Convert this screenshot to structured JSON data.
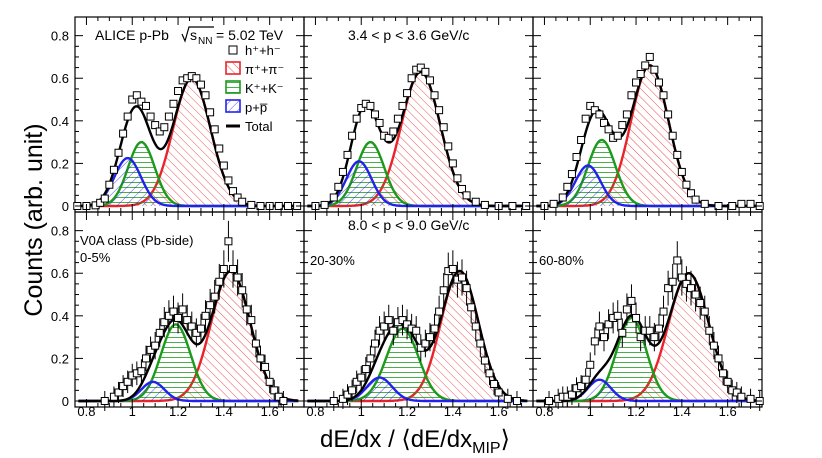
{
  "figure": {
    "ylabel": "Counts (arb. unit)",
    "xlabel_main": "dE/dx / ⟨dE/dx",
    "xlabel_sub": "MIP",
    "xlabel_close": "⟩",
    "experiment": "ALICE p-Pb",
    "energy_label": "= 5.02 TeV",
    "energy_sqrt": "s",
    "energy_sub": "NN",
    "momentum_top": "3.4 < p < 3.6 GeV/c",
    "momentum_bottom": "8.0 < p < 9.0 GeV/c",
    "class_label": "V0A class (Pb-side)"
  },
  "legend": [
    {
      "label": "h⁺+h⁻",
      "style": "marker"
    },
    {
      "label": "π⁺+π⁻",
      "style": "hatch",
      "color": "#e8242a"
    },
    {
      "label": "K⁺+K⁻",
      "style": "hatch",
      "color": "#1c9a1c"
    },
    {
      "label": "p+p̅",
      "style": "hatch",
      "color": "#2222ee"
    },
    {
      "label": "Total",
      "style": "line",
      "color": "#000000"
    }
  ],
  "chart_data": {
    "type": "line",
    "xlim": [
      0.75,
      1.75
    ],
    "ylim": [
      0,
      0.85
    ],
    "xticks": [
      "0.8",
      "1",
      "1.2",
      "1.4",
      "1.6"
    ],
    "yticks": [
      "0",
      "0.2",
      "0.4",
      "0.6",
      "0.8"
    ],
    "colors": {
      "pion": "#e8242a",
      "kaon": "#1c9a1c",
      "proton": "#2222ee",
      "total": "#000000"
    },
    "panels": [
      {
        "row": 0,
        "col": 0,
        "centrality": "",
        "pion": [
          0.6,
          1.26,
          0.082
        ],
        "kaon": [
          0.3,
          1.04,
          0.058
        ],
        "proton": [
          0.225,
          0.98,
          0.058
        ],
        "points": [
          [
            0.76,
            0.0
          ],
          [
            0.8,
            0.0
          ],
          [
            0.84,
            0.003
          ],
          [
            0.86,
            0.015
          ],
          [
            0.88,
            0.035
          ],
          [
            0.9,
            0.1
          ],
          [
            0.92,
            0.17
          ],
          [
            0.94,
            0.25
          ],
          [
            0.96,
            0.34
          ],
          [
            0.98,
            0.42
          ],
          [
            1.0,
            0.5
          ],
          [
            1.02,
            0.52
          ],
          [
            1.04,
            0.49
          ],
          [
            1.06,
            0.47
          ],
          [
            1.08,
            0.42
          ],
          [
            1.1,
            0.38
          ],
          [
            1.12,
            0.35
          ],
          [
            1.14,
            0.37
          ],
          [
            1.16,
            0.42
          ],
          [
            1.18,
            0.48
          ],
          [
            1.2,
            0.54
          ],
          [
            1.22,
            0.59
          ],
          [
            1.24,
            0.6
          ],
          [
            1.26,
            0.61
          ],
          [
            1.28,
            0.6
          ],
          [
            1.3,
            0.57
          ],
          [
            1.32,
            0.52
          ],
          [
            1.34,
            0.44
          ],
          [
            1.36,
            0.36
          ],
          [
            1.38,
            0.27
          ],
          [
            1.4,
            0.19
          ],
          [
            1.42,
            0.12
          ],
          [
            1.44,
            0.07
          ],
          [
            1.46,
            0.04
          ],
          [
            1.48,
            0.02
          ],
          [
            1.52,
            0.005
          ],
          [
            1.56,
            0.0
          ],
          [
            1.6,
            0.0
          ],
          [
            1.64,
            0.0
          ],
          [
            1.68,
            0.0
          ],
          [
            1.72,
            0.0
          ]
        ]
      },
      {
        "row": 0,
        "col": 1,
        "centrality": "",
        "pion": [
          0.63,
          1.26,
          0.085
        ],
        "kaon": [
          0.3,
          1.04,
          0.06
        ],
        "proton": [
          0.21,
          0.99,
          0.055
        ],
        "points": [
          [
            0.8,
            0.0
          ],
          [
            0.84,
            0.005
          ],
          [
            0.88,
            0.04
          ],
          [
            0.9,
            0.09
          ],
          [
            0.92,
            0.16
          ],
          [
            0.94,
            0.24
          ],
          [
            0.96,
            0.33
          ],
          [
            0.98,
            0.41
          ],
          [
            1.0,
            0.46
          ],
          [
            1.02,
            0.48
          ],
          [
            1.04,
            0.47
          ],
          [
            1.06,
            0.43
          ],
          [
            1.08,
            0.39
          ],
          [
            1.1,
            0.33
          ],
          [
            1.12,
            0.32
          ],
          [
            1.14,
            0.35
          ],
          [
            1.16,
            0.41
          ],
          [
            1.18,
            0.47
          ],
          [
            1.2,
            0.53
          ],
          [
            1.22,
            0.6
          ],
          [
            1.24,
            0.64
          ],
          [
            1.26,
            0.65
          ],
          [
            1.28,
            0.63
          ],
          [
            1.3,
            0.59
          ],
          [
            1.32,
            0.52
          ],
          [
            1.34,
            0.45
          ],
          [
            1.36,
            0.37
          ],
          [
            1.38,
            0.28
          ],
          [
            1.4,
            0.2
          ],
          [
            1.42,
            0.13
          ],
          [
            1.44,
            0.08
          ],
          [
            1.46,
            0.05
          ],
          [
            1.5,
            0.02
          ],
          [
            1.54,
            0.005
          ],
          [
            1.6,
            0.0
          ],
          [
            1.66,
            0.0
          ],
          [
            1.72,
            0.0
          ]
        ]
      },
      {
        "row": 0,
        "col": 2,
        "centrality": "",
        "pion": [
          0.66,
          1.26,
          0.082
        ],
        "kaon": [
          0.31,
          1.05,
          0.06
        ],
        "proton": [
          0.19,
          0.99,
          0.055
        ],
        "points": [
          [
            0.8,
            0.0
          ],
          [
            0.84,
            0.01
          ],
          [
            0.88,
            0.04
          ],
          [
            0.9,
            0.09
          ],
          [
            0.92,
            0.15
          ],
          [
            0.94,
            0.23
          ],
          [
            0.96,
            0.31
          ],
          [
            0.98,
            0.41
          ],
          [
            1.0,
            0.47
          ],
          [
            1.02,
            0.45
          ],
          [
            1.04,
            0.43
          ],
          [
            1.06,
            0.39
          ],
          [
            1.08,
            0.36
          ],
          [
            1.1,
            0.32
          ],
          [
            1.12,
            0.33
          ],
          [
            1.14,
            0.38
          ],
          [
            1.16,
            0.43
          ],
          [
            1.18,
            0.52
          ],
          [
            1.2,
            0.58
          ],
          [
            1.22,
            0.62
          ],
          [
            1.24,
            0.66
          ],
          [
            1.26,
            0.7
          ],
          [
            1.28,
            0.64
          ],
          [
            1.3,
            0.58
          ],
          [
            1.32,
            0.52
          ],
          [
            1.34,
            0.43
          ],
          [
            1.36,
            0.33
          ],
          [
            1.38,
            0.24
          ],
          [
            1.4,
            0.16
          ],
          [
            1.42,
            0.1
          ],
          [
            1.44,
            0.06
          ],
          [
            1.46,
            0.03
          ],
          [
            1.5,
            0.01
          ],
          [
            1.56,
            0.0
          ],
          [
            1.62,
            0.0
          ],
          [
            1.66,
            0.01
          ],
          [
            1.7,
            0.01
          ],
          [
            1.74,
            0.0
          ]
        ]
      },
      {
        "row": 1,
        "col": 0,
        "centrality": "0-5%",
        "pion": [
          0.61,
          1.43,
          0.085
        ],
        "kaon": [
          0.36,
          1.19,
          0.065
        ],
        "proton": [
          0.09,
          1.09,
          0.05
        ],
        "points": [
          [
            0.88,
            0.0
          ],
          [
            0.92,
            0.02
          ],
          [
            0.94,
            0.04
          ],
          [
            0.96,
            0.07
          ],
          [
            0.98,
            0.09
          ],
          [
            1.0,
            0.12
          ],
          [
            1.02,
            0.13
          ],
          [
            1.04,
            0.14
          ],
          [
            1.06,
            0.2
          ],
          [
            1.08,
            0.24
          ],
          [
            1.1,
            0.26
          ],
          [
            1.12,
            0.32
          ],
          [
            1.14,
            0.37
          ],
          [
            1.16,
            0.4
          ],
          [
            1.18,
            0.42
          ],
          [
            1.2,
            0.39
          ],
          [
            1.22,
            0.43
          ],
          [
            1.24,
            0.38
          ],
          [
            1.26,
            0.35
          ],
          [
            1.28,
            0.32
          ],
          [
            1.3,
            0.34
          ],
          [
            1.32,
            0.4
          ],
          [
            1.34,
            0.45
          ],
          [
            1.36,
            0.49
          ],
          [
            1.38,
            0.56
          ],
          [
            1.4,
            0.62
          ],
          [
            1.42,
            0.75
          ],
          [
            1.44,
            0.62
          ],
          [
            1.46,
            0.58
          ],
          [
            1.48,
            0.52
          ],
          [
            1.5,
            0.43
          ],
          [
            1.52,
            0.38
          ],
          [
            1.54,
            0.27
          ],
          [
            1.56,
            0.2
          ],
          [
            1.58,
            0.16
          ],
          [
            1.6,
            0.09
          ],
          [
            1.62,
            0.05
          ],
          [
            1.64,
            0.02
          ],
          [
            1.66,
            0.0
          ]
        ]
      },
      {
        "row": 1,
        "col": 1,
        "centrality": "20-30%",
        "pion": [
          0.61,
          1.43,
          0.082
        ],
        "kaon": [
          0.34,
          1.18,
          0.07
        ],
        "proton": [
          0.11,
          1.08,
          0.055
        ],
        "points": [
          [
            0.88,
            0.0
          ],
          [
            0.92,
            0.01
          ],
          [
            0.94,
            0.03
          ],
          [
            0.96,
            0.05
          ],
          [
            0.98,
            0.09
          ],
          [
            1.0,
            0.11
          ],
          [
            1.02,
            0.15
          ],
          [
            1.04,
            0.2
          ],
          [
            1.06,
            0.27
          ],
          [
            1.08,
            0.33
          ],
          [
            1.1,
            0.35
          ],
          [
            1.12,
            0.38
          ],
          [
            1.14,
            0.33
          ],
          [
            1.16,
            0.37
          ],
          [
            1.18,
            0.38
          ],
          [
            1.2,
            0.36
          ],
          [
            1.22,
            0.34
          ],
          [
            1.24,
            0.33
          ],
          [
            1.26,
            0.25
          ],
          [
            1.28,
            0.27
          ],
          [
            1.3,
            0.3
          ],
          [
            1.32,
            0.34
          ],
          [
            1.34,
            0.42
          ],
          [
            1.36,
            0.52
          ],
          [
            1.38,
            0.61
          ],
          [
            1.4,
            0.62
          ],
          [
            1.42,
            0.57
          ],
          [
            1.44,
            0.58
          ],
          [
            1.46,
            0.53
          ],
          [
            1.48,
            0.44
          ],
          [
            1.5,
            0.35
          ],
          [
            1.52,
            0.27
          ],
          [
            1.54,
            0.19
          ],
          [
            1.56,
            0.13
          ],
          [
            1.58,
            0.08
          ],
          [
            1.6,
            0.04
          ],
          [
            1.64,
            0.01
          ],
          [
            1.68,
            0.0
          ]
        ]
      },
      {
        "row": 1,
        "col": 2,
        "centrality": "60-80%",
        "pion": [
          0.6,
          1.43,
          0.088
        ],
        "kaon": [
          0.39,
          1.18,
          0.065
        ],
        "proton": [
          0.1,
          1.04,
          0.05
        ],
        "points": [
          [
            0.82,
            0.0
          ],
          [
            0.86,
            0.01
          ],
          [
            0.88,
            0.02
          ],
          [
            0.9,
            0.02
          ],
          [
            0.92,
            0.03
          ],
          [
            0.94,
            0.06
          ],
          [
            0.96,
            0.07
          ],
          [
            0.98,
            0.1
          ],
          [
            1.0,
            0.17
          ],
          [
            1.02,
            0.28
          ],
          [
            1.04,
            0.35
          ],
          [
            1.06,
            0.3
          ],
          [
            1.08,
            0.36
          ],
          [
            1.1,
            0.39
          ],
          [
            1.12,
            0.4
          ],
          [
            1.14,
            0.32
          ],
          [
            1.16,
            0.43
          ],
          [
            1.18,
            0.47
          ],
          [
            1.2,
            0.39
          ],
          [
            1.22,
            0.3
          ],
          [
            1.24,
            0.33
          ],
          [
            1.26,
            0.33
          ],
          [
            1.28,
            0.3
          ],
          [
            1.3,
            0.34
          ],
          [
            1.32,
            0.42
          ],
          [
            1.34,
            0.53
          ],
          [
            1.36,
            0.56
          ],
          [
            1.38,
            0.66
          ],
          [
            1.4,
            0.58
          ],
          [
            1.42,
            0.55
          ],
          [
            1.44,
            0.53
          ],
          [
            1.46,
            0.5
          ],
          [
            1.48,
            0.46
          ],
          [
            1.5,
            0.42
          ],
          [
            1.52,
            0.33
          ],
          [
            1.54,
            0.26
          ],
          [
            1.56,
            0.2
          ],
          [
            1.58,
            0.13
          ],
          [
            1.6,
            0.09
          ],
          [
            1.62,
            0.05
          ],
          [
            1.64,
            0.04
          ],
          [
            1.66,
            0.02
          ],
          [
            1.7,
            0.01
          ],
          [
            1.74,
            0.0
          ]
        ]
      }
    ]
  }
}
